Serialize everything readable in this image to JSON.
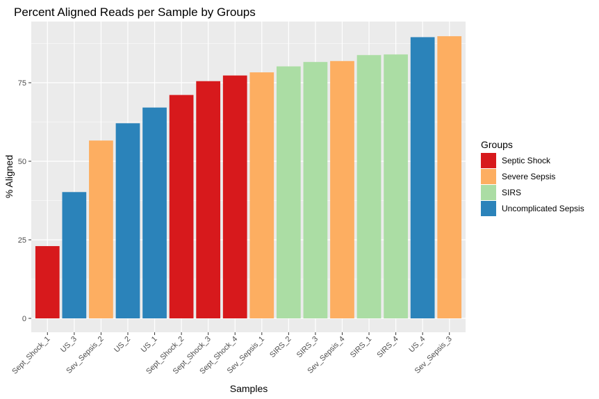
{
  "chart_data": {
    "type": "bar",
    "title": "Percent Aligned Reads per Sample by Groups",
    "xlabel": "Samples",
    "ylabel": "% Aligned",
    "ylim": [
      0,
      92
    ],
    "yticks": [
      0,
      25,
      50,
      75
    ],
    "grid": true,
    "legend": {
      "title": "Groups",
      "placement": "right",
      "entries": [
        {
          "name": "Septic Shock",
          "color": "#D7191C"
        },
        {
          "name": "Severe Sepsis",
          "color": "#FDAE61"
        },
        {
          "name": "SIRS",
          "color": "#ABDDA4"
        },
        {
          "name": "Uncomplicated Sepsis",
          "color": "#2B83BA"
        }
      ]
    },
    "categories": [
      "Sept_Shock_1",
      "US_3",
      "Sev_Sepsis_2",
      "US_2",
      "US_1",
      "Sept_Shock_2",
      "Sept_Shock_3",
      "Sept_Shock_4",
      "Sev_Sepsis_1",
      "SIRS_2",
      "SIRS_3",
      "Sev_Sepsis_4",
      "SIRS_1",
      "SIRS_4",
      "US_4",
      "Sev_Sepsis_3"
    ],
    "values": [
      23.0,
      40.2,
      56.6,
      62.1,
      67.1,
      71.1,
      75.5,
      77.3,
      78.3,
      80.2,
      81.6,
      81.9,
      83.8,
      84.0,
      89.5,
      89.8
    ],
    "groups": [
      "Septic Shock",
      "Uncomplicated Sepsis",
      "Severe Sepsis",
      "Uncomplicated Sepsis",
      "Uncomplicated Sepsis",
      "Septic Shock",
      "Septic Shock",
      "Septic Shock",
      "Severe Sepsis",
      "SIRS",
      "SIRS",
      "Severe Sepsis",
      "SIRS",
      "SIRS",
      "Uncomplicated Sepsis",
      "Severe Sepsis"
    ]
  }
}
